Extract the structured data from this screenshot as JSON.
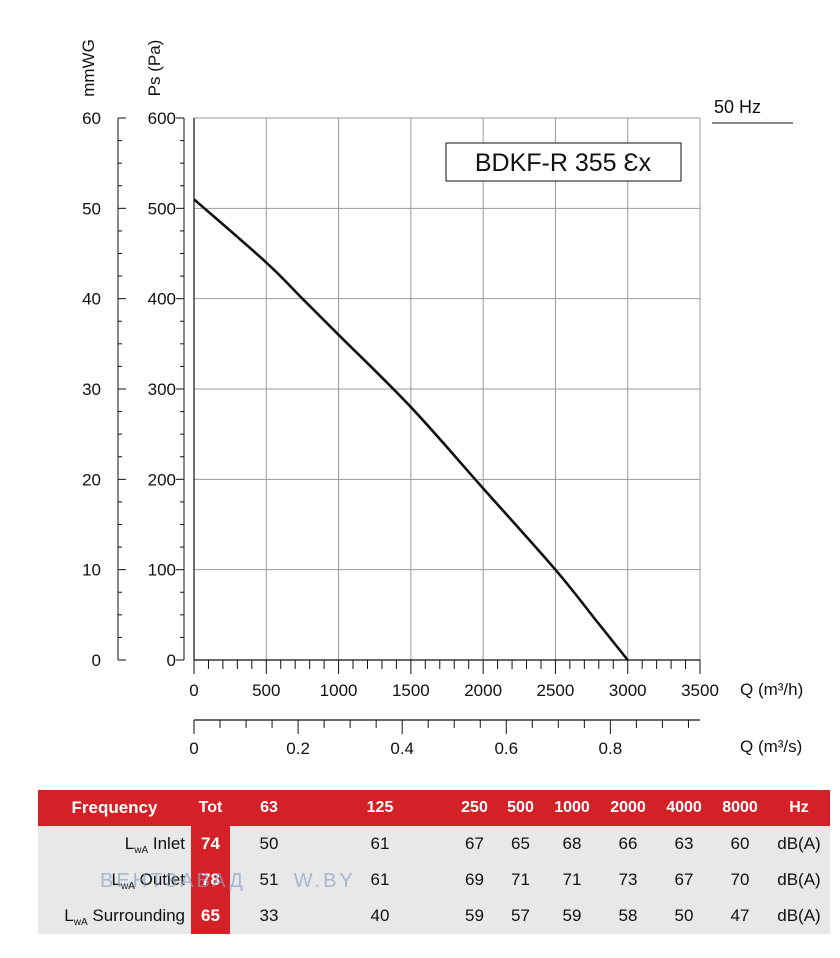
{
  "chart_data": {
    "type": "line",
    "title": "BDKF-R 355 Ɛx",
    "frequency_label": "50 Hz",
    "xlabel": "Q (m³/h)",
    "xlim": [
      0,
      3500
    ],
    "x_ticks": [
      "0",
      "500",
      "1000",
      "1500",
      "2000",
      "2500",
      "3000",
      "3500"
    ],
    "ylabel": "Ps (Pa)",
    "ylim": [
      0,
      600
    ],
    "y_ticks": [
      "0",
      "100",
      "200",
      "300",
      "400",
      "500",
      "600"
    ],
    "y2label": "mmWG",
    "y2_ticks": [
      "0",
      "10",
      "20",
      "30",
      "40",
      "50",
      "60"
    ],
    "x2label": "Q (m³/s)",
    "x2_ticks": [
      "0",
      "0.2",
      "0.4",
      "0.6",
      "0.8"
    ],
    "grid": true,
    "series": [
      {
        "x": [
          0,
          500,
          750,
          1000,
          1500,
          2000,
          2500,
          2800,
          3000
        ],
        "y": [
          510,
          440,
          400,
          360,
          280,
          190,
          100,
          40,
          0
        ]
      }
    ]
  },
  "table": {
    "headers": [
      "Frequency",
      "Tot",
      "63",
      "125",
      "250",
      "500",
      "1000",
      "2000",
      "4000",
      "8000",
      "Hz"
    ],
    "rows": [
      {
        "label_main": "L",
        "label_sub": "wA",
        "label_rest": " Inlet",
        "tot": "74",
        "values": [
          "50",
          "61",
          "67",
          "65",
          "68",
          "66",
          "63",
          "60"
        ],
        "unit": "dB(A)"
      },
      {
        "label_main": "L",
        "label_sub": "wA",
        "label_rest": " Outlet",
        "tot": "78",
        "values": [
          "51",
          "61",
          "69",
          "71",
          "71",
          "73",
          "67",
          "70"
        ],
        "unit": "dB(A)"
      },
      {
        "label_main": "L",
        "label_sub": "wA",
        "label_rest": " Surrounding",
        "tot": "65",
        "values": [
          "33",
          "40",
          "59",
          "57",
          "59",
          "58",
          "50",
          "47"
        ],
        "unit": "dB(A)"
      }
    ]
  },
  "watermark": {
    "left": "ВЕНТЗАВАД",
    "right": "W.BY"
  }
}
